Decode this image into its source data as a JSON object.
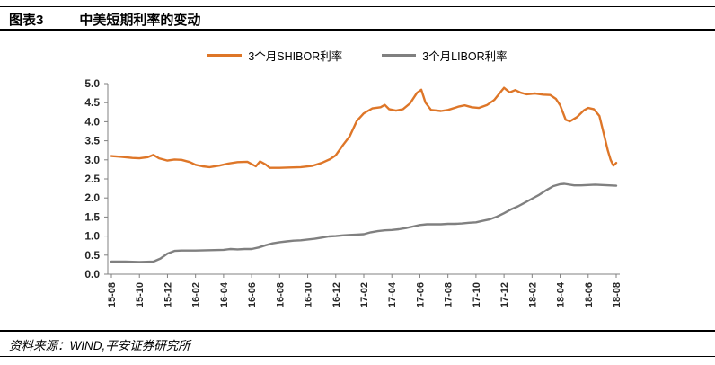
{
  "header": {
    "tag": "图表3",
    "title": "中美短期利率的变动"
  },
  "legend": [
    {
      "label": "3个月SHIBOR利率",
      "color": "#DE7628"
    },
    {
      "label": "3个月LIBOR利率",
      "color": "#808080"
    }
  ],
  "footer": {
    "source": "资料来源：WIND,平安证券研究所"
  },
  "chart_data": {
    "type": "line",
    "title": "中美短期利率的变动",
    "xlabel": "",
    "ylabel": "",
    "ylim": [
      0,
      5
    ],
    "x_range": 36,
    "grid": false,
    "legend_position": "top-center",
    "axis_color": "#808080",
    "tick_label_color": "#262626",
    "y_ticks": [
      "0.0",
      "0.5",
      "1.0",
      "1.5",
      "2.0",
      "2.5",
      "3.0",
      "3.5",
      "4.0",
      "4.5",
      "5.0"
    ],
    "x_tick_labels": [
      "15-08",
      "15-10",
      "15-12",
      "16-02",
      "16-04",
      "16-06",
      "16-08",
      "16-10",
      "16-12",
      "17-02",
      "17-04",
      "17-06",
      "17-08",
      "17-10",
      "17-12",
      "18-02",
      "18-04",
      "18-06",
      "18-08"
    ],
    "series": [
      {
        "id": "shibor-line",
        "name": "3个月SHIBOR利率",
        "color": "#DE7628",
        "points": [
          [
            0,
            3.1
          ],
          [
            0.7,
            3.08
          ],
          [
            1.5,
            3.05
          ],
          [
            2,
            3.04
          ],
          [
            2.6,
            3.07
          ],
          [
            3,
            3.13
          ],
          [
            3.4,
            3.04
          ],
          [
            4,
            2.98
          ],
          [
            4.5,
            3.01
          ],
          [
            5,
            3.0
          ],
          [
            5.6,
            2.94
          ],
          [
            6,
            2.87
          ],
          [
            6.5,
            2.83
          ],
          [
            7,
            2.81
          ],
          [
            7.7,
            2.85
          ],
          [
            8.3,
            2.9
          ],
          [
            9,
            2.94
          ],
          [
            9.7,
            2.95
          ],
          [
            10.3,
            2.83
          ],
          [
            10.6,
            2.96
          ],
          [
            11,
            2.88
          ],
          [
            11.3,
            2.79
          ],
          [
            12,
            2.79
          ],
          [
            12.7,
            2.8
          ],
          [
            13.5,
            2.81
          ],
          [
            14.3,
            2.84
          ],
          [
            15,
            2.92
          ],
          [
            15.6,
            3.02
          ],
          [
            16,
            3.12
          ],
          [
            16.5,
            3.38
          ],
          [
            17,
            3.62
          ],
          [
            17.5,
            4.02
          ],
          [
            18,
            4.22
          ],
          [
            18.6,
            4.35
          ],
          [
            19.2,
            4.38
          ],
          [
            19.5,
            4.44
          ],
          [
            19.8,
            4.33
          ],
          [
            20.3,
            4.29
          ],
          [
            20.8,
            4.33
          ],
          [
            21.3,
            4.48
          ],
          [
            21.8,
            4.76
          ],
          [
            22.1,
            4.84
          ],
          [
            22.4,
            4.5
          ],
          [
            22.8,
            4.31
          ],
          [
            23.5,
            4.28
          ],
          [
            24,
            4.31
          ],
          [
            24.8,
            4.4
          ],
          [
            25.2,
            4.43
          ],
          [
            25.7,
            4.38
          ],
          [
            26.2,
            4.36
          ],
          [
            26.8,
            4.44
          ],
          [
            27.3,
            4.57
          ],
          [
            27.8,
            4.8
          ],
          [
            28,
            4.89
          ],
          [
            28.4,
            4.77
          ],
          [
            28.8,
            4.83
          ],
          [
            29.2,
            4.76
          ],
          [
            29.6,
            4.72
          ],
          [
            30.2,
            4.74
          ],
          [
            30.8,
            4.71
          ],
          [
            31.3,
            4.7
          ],
          [
            31.7,
            4.6
          ],
          [
            32,
            4.43
          ],
          [
            32.4,
            4.05
          ],
          [
            32.7,
            4.01
          ],
          [
            33.2,
            4.12
          ],
          [
            33.7,
            4.3
          ],
          [
            34,
            4.36
          ],
          [
            34.4,
            4.33
          ],
          [
            34.8,
            4.15
          ],
          [
            35.1,
            3.7
          ],
          [
            35.4,
            3.25
          ],
          [
            35.6,
            3.0
          ],
          [
            35.8,
            2.85
          ],
          [
            36,
            2.92
          ]
        ]
      },
      {
        "id": "libor-line",
        "name": "3个月LIBOR利率",
        "color": "#808080",
        "points": [
          [
            0,
            0.33
          ],
          [
            1,
            0.33
          ],
          [
            2,
            0.32
          ],
          [
            3,
            0.33
          ],
          [
            3.5,
            0.41
          ],
          [
            4,
            0.54
          ],
          [
            4.5,
            0.61
          ],
          [
            5,
            0.62
          ],
          [
            6,
            0.62
          ],
          [
            7,
            0.63
          ],
          [
            8,
            0.64
          ],
          [
            8.5,
            0.66
          ],
          [
            9,
            0.65
          ],
          [
            9.5,
            0.66
          ],
          [
            10,
            0.66
          ],
          [
            10.5,
            0.7
          ],
          [
            11,
            0.76
          ],
          [
            11.5,
            0.81
          ],
          [
            12,
            0.84
          ],
          [
            12.5,
            0.86
          ],
          [
            13,
            0.88
          ],
          [
            13.5,
            0.89
          ],
          [
            14,
            0.91
          ],
          [
            14.5,
            0.93
          ],
          [
            15,
            0.96
          ],
          [
            15.5,
            0.99
          ],
          [
            16,
            1.0
          ],
          [
            16.5,
            1.02
          ],
          [
            17,
            1.03
          ],
          [
            17.5,
            1.04
          ],
          [
            18,
            1.05
          ],
          [
            18.5,
            1.1
          ],
          [
            19,
            1.13
          ],
          [
            19.5,
            1.15
          ],
          [
            20,
            1.16
          ],
          [
            20.5,
            1.18
          ],
          [
            21,
            1.21
          ],
          [
            21.5,
            1.25
          ],
          [
            22,
            1.29
          ],
          [
            22.5,
            1.31
          ],
          [
            23,
            1.31
          ],
          [
            23.5,
            1.31
          ],
          [
            24,
            1.32
          ],
          [
            24.5,
            1.32
          ],
          [
            25,
            1.33
          ],
          [
            25.5,
            1.35
          ],
          [
            26,
            1.36
          ],
          [
            26.5,
            1.4
          ],
          [
            27,
            1.44
          ],
          [
            27.5,
            1.51
          ],
          [
            28,
            1.6
          ],
          [
            28.5,
            1.7
          ],
          [
            29,
            1.78
          ],
          [
            29.5,
            1.88
          ],
          [
            30,
            1.98
          ],
          [
            30.5,
            2.08
          ],
          [
            31,
            2.2
          ],
          [
            31.5,
            2.31
          ],
          [
            32,
            2.36
          ],
          [
            32.3,
            2.37
          ],
          [
            33,
            2.33
          ],
          [
            33.5,
            2.33
          ],
          [
            34,
            2.34
          ],
          [
            34.5,
            2.35
          ],
          [
            35,
            2.34
          ],
          [
            35.5,
            2.33
          ],
          [
            36,
            2.32
          ]
        ]
      }
    ]
  }
}
